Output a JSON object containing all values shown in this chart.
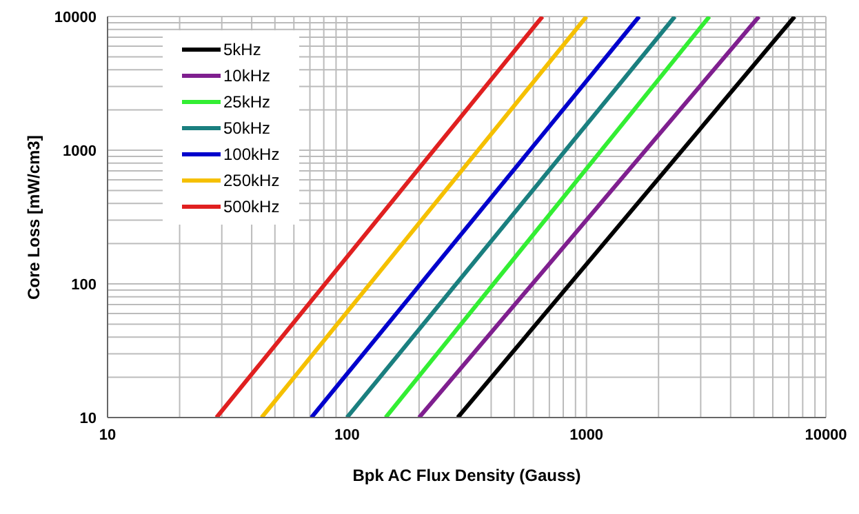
{
  "chart_data": {
    "type": "line",
    "xlabel": "Bpk AC Flux Density (Gauss)",
    "ylabel": "Core Loss [mW/cm3]",
    "log": "xy",
    "grid": true,
    "legend": "top left",
    "marker": "none",
    "line_style": "solid",
    "xlim": [
      10,
      10000
    ],
    "ylim": [
      10,
      10000
    ],
    "xticks": [
      10,
      {
        "value": 20,
        "label": null
      },
      {
        "value": 30,
        "label": null
      },
      {
        "value": 40,
        "label": null
      },
      {
        "value": 50,
        "label": null
      },
      {
        "value": 60,
        "label": null
      },
      {
        "value": 70,
        "label": null
      },
      {
        "value": 80,
        "label": null
      },
      {
        "value": 90,
        "label": null
      },
      100,
      {
        "value": 200,
        "label": null
      },
      {
        "value": 300,
        "label": null
      },
      {
        "value": 400,
        "label": null
      },
      {
        "value": 500,
        "label": null
      },
      {
        "value": 600,
        "label": null
      },
      {
        "value": 700,
        "label": null
      },
      {
        "value": 800,
        "label": null
      },
      {
        "value": 900,
        "label": null
      },
      1000,
      {
        "value": 2000,
        "label": null
      },
      {
        "value": 3000,
        "label": null
      },
      {
        "value": 4000,
        "label": null
      },
      {
        "value": 5000,
        "label": null
      },
      {
        "value": 6000,
        "label": null
      },
      {
        "value": 7000,
        "label": null
      },
      {
        "value": 8000,
        "label": null
      },
      {
        "value": 9000,
        "label": null
      },
      10000
    ],
    "yticks": [
      10,
      {
        "value": 20,
        "label": null
      },
      {
        "value": 30,
        "label": null
      },
      {
        "value": 40,
        "label": null
      },
      {
        "value": 50,
        "label": null
      },
      {
        "value": 60,
        "label": null
      },
      {
        "value": 70,
        "label": null
      },
      {
        "value": 80,
        "label": null
      },
      {
        "value": 90,
        "label": null
      },
      100,
      {
        "value": 200,
        "label": null
      },
      {
        "value": 300,
        "label": null
      },
      {
        "value": 400,
        "label": null
      },
      {
        "value": 500,
        "label": null
      },
      {
        "value": 600,
        "label": null
      },
      {
        "value": 700,
        "label": null
      },
      {
        "value": 800,
        "label": null
      },
      {
        "value": 900,
        "label": null
      },
      1000,
      {
        "value": 2000,
        "label": null
      },
      {
        "value": 3000,
        "label": null
      },
      {
        "value": 4000,
        "label": null
      },
      {
        "value": 5000,
        "label": null
      },
      {
        "value": 6000,
        "label": null
      },
      {
        "value": 7000,
        "label": null
      },
      {
        "value": 8000,
        "label": null
      },
      {
        "value": 9000,
        "label": null
      },
      10000
    ],
    "series": [
      {
        "name": "5kHz",
        "color": "#000000",
        "x": [
          290,
          7400
        ],
        "values": [
          10,
          10000
        ]
      },
      {
        "name": "10kHz",
        "color": "#7f1f8f",
        "x": [
          200,
          5250
        ],
        "values": [
          10,
          10000
        ]
      },
      {
        "name": "25kHz",
        "color": "#33ee33",
        "x": [
          145,
          3260
        ],
        "values": [
          10,
          10000
        ]
      },
      {
        "name": "50kHz",
        "color": "#1a7f7f",
        "x": [
          100,
          2340
        ],
        "values": [
          10,
          10000
        ]
      },
      {
        "name": "100kHz",
        "color": "#0000cc",
        "x": [
          71,
          1660
        ],
        "values": [
          10,
          10000
        ]
      },
      {
        "name": "250kHz",
        "color": "#f5c000",
        "x": [
          44,
          1000
        ],
        "values": [
          10,
          10000
        ]
      },
      {
        "name": "500kHz",
        "color": "#e02020",
        "x": [
          28.5,
          655
        ],
        "values": [
          10,
          10000
        ]
      }
    ]
  }
}
